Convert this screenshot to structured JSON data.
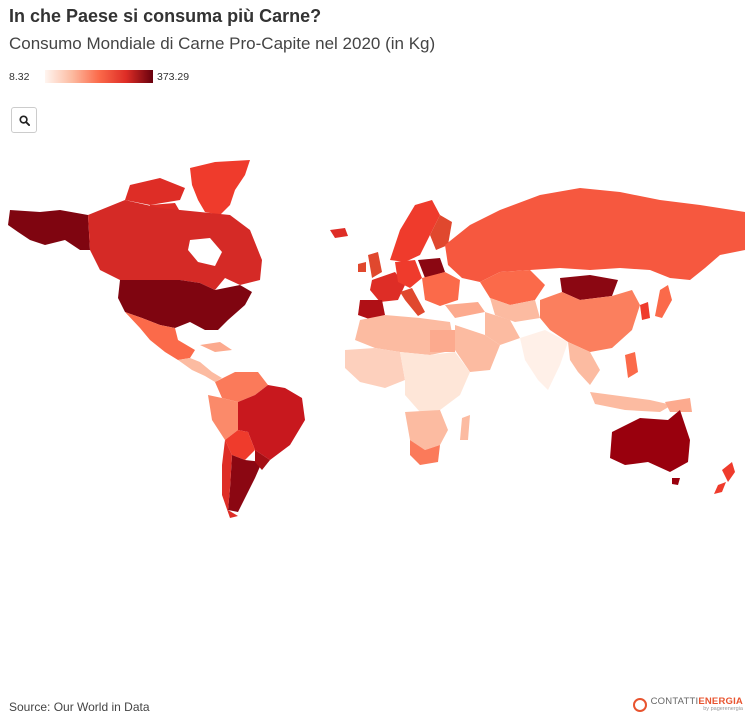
{
  "title": "In che Paese si consuma più Carne?",
  "subtitle": "Consumo Mondiale di Carne Pro-Capite nel 2020 (in Kg)",
  "legend": {
    "min": "8.32",
    "max": "373.29",
    "colors": [
      "#fff5f0",
      "#fcbba1",
      "#fb6a4a",
      "#de2d26",
      "#67000d"
    ]
  },
  "toolbar": {
    "zoom_icon": "search-icon"
  },
  "source": "Source: Our World in Data",
  "logo": {
    "part1": "CONTATTI",
    "part2": "ENERGIA",
    "by": "by pagerenergia"
  }
}
